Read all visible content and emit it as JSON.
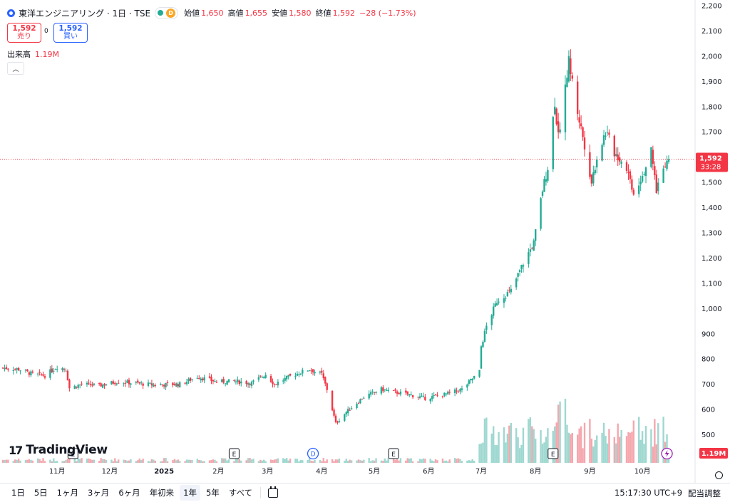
{
  "header": {
    "title": "東洋エンジニアリング · 1日 · TSE",
    "badge": "D",
    "ohlc": [
      {
        "label": "始値",
        "value": "1,650"
      },
      {
        "label": "高値",
        "value": "1,655"
      },
      {
        "label": "安値",
        "value": "1,580"
      },
      {
        "label": "終値",
        "value": "1,592"
      },
      {
        "label": "",
        "value": "−28 (−1.73%)"
      }
    ]
  },
  "trade": {
    "sell_price": "1,592",
    "sell_label": "売り",
    "spread": "0",
    "buy_price": "1,592",
    "buy_label": "買い"
  },
  "volume_legend": {
    "label": "出来高",
    "value": "1.19M"
  },
  "price_tag": {
    "price": "1,592",
    "countdown": "33:28"
  },
  "volume_tag": "1.19M",
  "logo_text": "TradingView",
  "events": [
    {
      "type": "E",
      "date": "2024-11-10"
    },
    {
      "type": "E",
      "date": "2025-02-10"
    },
    {
      "type": "D",
      "date": "2025-03-27"
    },
    {
      "type": "E",
      "date": "2025-05-12"
    },
    {
      "type": "E",
      "date": "2025-08-11"
    },
    {
      "type": "lightning",
      "date": "2025-10-15"
    }
  ],
  "bottom_bar": {
    "ranges": [
      "1日",
      "5日",
      "1ヶ月",
      "3ヶ月",
      "6ヶ月",
      "年初来",
      "1年",
      "5年",
      "すべて"
    ],
    "active_range": "1年",
    "time": "15:17:30 UTC+9",
    "adjust": "配当調整"
  },
  "colors": {
    "up": "#22ab94",
    "down": "#f23645",
    "vol_up": "#9fd8d0",
    "vol_down": "#f5a7ae",
    "accent": "#2962ff"
  },
  "chart_data": {
    "type": "candlestick",
    "y_axis": {
      "min": 400,
      "max": 2200,
      "ticks": [
        500,
        600,
        700,
        800,
        900,
        1000,
        1100,
        1200,
        1300,
        1400,
        1500,
        1600,
        1700,
        1800,
        1900,
        2000,
        2100,
        2200
      ]
    },
    "x_axis_labels": [
      {
        "label": "11月",
        "date": "2024-11-01"
      },
      {
        "label": "12月",
        "date": "2024-12-01"
      },
      {
        "label": "2025",
        "date": "2025-01-01"
      },
      {
        "label": "2月",
        "date": "2025-02-01"
      },
      {
        "label": "3月",
        "date": "2025-03-01"
      },
      {
        "label": "4月",
        "date": "2025-04-01"
      },
      {
        "label": "5月",
        "date": "2025-05-01"
      },
      {
        "label": "6月",
        "date": "2025-06-01"
      },
      {
        "label": "7月",
        "date": "2025-07-01"
      },
      {
        "label": "8月",
        "date": "2025-08-01"
      },
      {
        "label": "9月",
        "date": "2025-09-01"
      },
      {
        "label": "10月",
        "date": "2025-10-01"
      }
    ],
    "series": [
      {
        "date": "2024-10-01",
        "close": 765
      },
      {
        "date": "2024-10-10",
        "close": 760
      },
      {
        "date": "2024-10-18",
        "close": 740
      },
      {
        "date": "2024-10-25",
        "close": 735
      },
      {
        "date": "2024-11-01",
        "close": 770
      },
      {
        "date": "2024-11-06",
        "close": 760
      },
      {
        "date": "2024-11-08",
        "close": 685
      },
      {
        "date": "2024-11-15",
        "close": 700
      },
      {
        "date": "2024-11-25",
        "close": 695
      },
      {
        "date": "2024-12-05",
        "close": 710
      },
      {
        "date": "2024-12-15",
        "close": 705
      },
      {
        "date": "2024-12-25",
        "close": 698
      },
      {
        "date": "2025-01-10",
        "close": 700
      },
      {
        "date": "2025-01-20",
        "close": 730
      },
      {
        "date": "2025-01-31",
        "close": 710
      },
      {
        "date": "2025-02-10",
        "close": 712
      },
      {
        "date": "2025-02-20",
        "close": 705
      },
      {
        "date": "2025-02-28",
        "close": 740
      },
      {
        "date": "2025-03-05",
        "close": 700
      },
      {
        "date": "2025-03-15",
        "close": 735
      },
      {
        "date": "2025-03-25",
        "close": 760
      },
      {
        "date": "2025-04-01",
        "close": 740
      },
      {
        "date": "2025-04-04",
        "close": 680
      },
      {
        "date": "2025-04-07",
        "close": 600
      },
      {
        "date": "2025-04-09",
        "close": 545
      },
      {
        "date": "2025-04-15",
        "close": 590
      },
      {
        "date": "2025-04-25",
        "close": 650
      },
      {
        "date": "2025-05-05",
        "close": 680
      },
      {
        "date": "2025-05-12",
        "close": 670
      },
      {
        "date": "2025-05-20",
        "close": 660
      },
      {
        "date": "2025-05-30",
        "close": 645
      },
      {
        "date": "2025-06-10",
        "close": 660
      },
      {
        "date": "2025-06-20",
        "close": 680
      },
      {
        "date": "2025-06-30",
        "close": 750
      },
      {
        "date": "2025-07-01",
        "close": 850
      },
      {
        "date": "2025-07-04",
        "close": 930
      },
      {
        "date": "2025-07-10",
        "close": 1030
      },
      {
        "date": "2025-07-18",
        "close": 1070
      },
      {
        "date": "2025-07-25",
        "close": 1180
      },
      {
        "date": "2025-07-31",
        "close": 1260
      },
      {
        "date": "2025-08-05",
        "close": 1470
      },
      {
        "date": "2025-08-08",
        "close": 1560
      },
      {
        "date": "2025-08-12",
        "close": 1820
      },
      {
        "date": "2025-08-14",
        "close": 1680
      },
      {
        "date": "2025-08-18",
        "close": 1880
      },
      {
        "date": "2025-08-20",
        "close": 1980
      },
      {
        "date": "2025-08-25",
        "close": 1780
      },
      {
        "date": "2025-08-29",
        "close": 1650
      },
      {
        "date": "2025-09-02",
        "close": 1500
      },
      {
        "date": "2025-09-05",
        "close": 1600
      },
      {
        "date": "2025-09-10",
        "close": 1700
      },
      {
        "date": "2025-09-15",
        "close": 1620
      },
      {
        "date": "2025-09-22",
        "close": 1560
      },
      {
        "date": "2025-09-26",
        "close": 1460
      },
      {
        "date": "2025-10-01",
        "close": 1530
      },
      {
        "date": "2025-10-06",
        "close": 1620
      },
      {
        "date": "2025-10-09",
        "close": 1470
      },
      {
        "date": "2025-10-14",
        "close": 1580
      },
      {
        "date": "2025-10-16",
        "close": 1592
      }
    ]
  }
}
